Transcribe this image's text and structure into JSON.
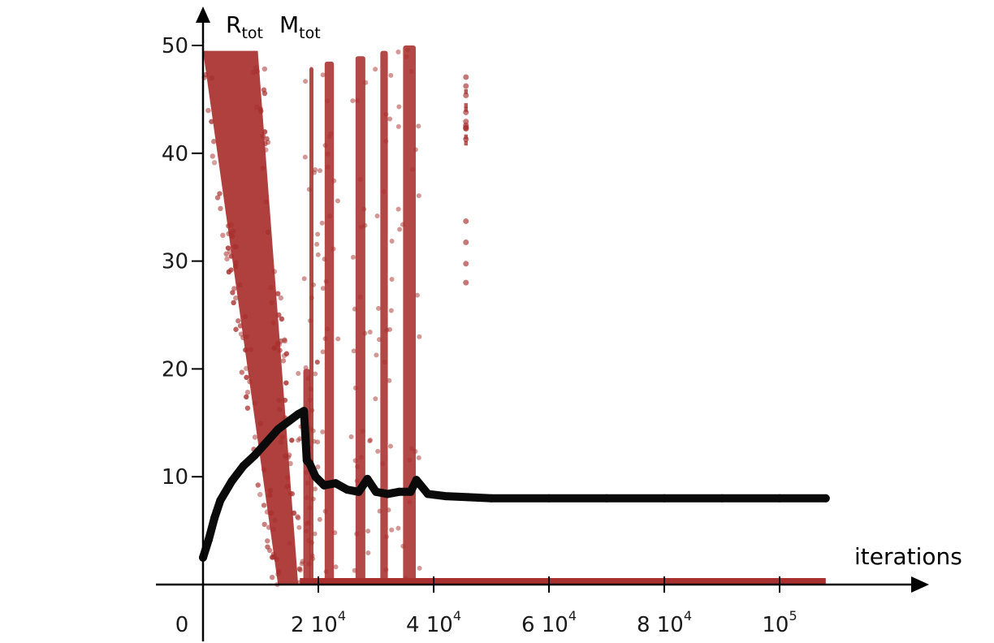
{
  "chart_data": {
    "type": "scatter",
    "ylabel": "R",
    "ylabel_sub": "tot",
    "ylabel2": "M",
    "ylabel2_sub": "tot",
    "xlabel": "iterations",
    "x_ticks": [
      {
        "value": 0,
        "label": "0",
        "sup": ""
      },
      {
        "value": 20000,
        "label": "2 10",
        "sup": "4"
      },
      {
        "value": 40000,
        "label": "4 10",
        "sup": "4"
      },
      {
        "value": 60000,
        "label": "6 10",
        "sup": "4"
      },
      {
        "value": 80000,
        "label": "8 10",
        "sup": "4"
      },
      {
        "value": 100000,
        "label": "10",
        "sup": "5"
      }
    ],
    "y_ticks": [
      10,
      20,
      30,
      40,
      50
    ],
    "xlim": [
      0,
      110000
    ],
    "ylim": [
      0,
      50
    ],
    "grid": false,
    "colors": {
      "R_tot": "#a8302e",
      "M_tot": "#0a0a0a"
    },
    "series": [
      {
        "key": "M_tot",
        "x": [
          0,
          1000,
          2000,
          3000,
          5000,
          7000,
          9000,
          11000,
          13000,
          15000,
          16500,
          17500,
          18000,
          18500,
          19500,
          21000,
          23000,
          25000,
          27000,
          28500,
          30000,
          32000,
          34000,
          36000,
          37000,
          39000,
          42000,
          46000,
          50000,
          60000,
          70000,
          80000,
          90000,
          100000,
          108000
        ],
        "y": [
          2.5,
          4.2,
          6.2,
          7.8,
          9.6,
          11.0,
          12.0,
          13.2,
          14.4,
          15.2,
          15.8,
          16.1,
          11.5,
          11.2,
          10.0,
          9.2,
          9.4,
          8.8,
          8.6,
          9.8,
          8.6,
          8.4,
          8.6,
          8.6,
          9.7,
          8.4,
          8.2,
          8.1,
          8.0,
          8.0,
          8.0,
          8.0,
          8.0,
          8.0,
          8.0
        ]
      }
    ],
    "r_tot_bands": [
      {
        "type": "wedge",
        "x_top_start": 0,
        "x_top_end": 9500,
        "y_top": 49.5,
        "x_bottom_start": 13000,
        "x_bottom_end": 16500,
        "y_bottom": 0
      },
      {
        "type": "column",
        "x": 18000,
        "width": 1200,
        "y_min": 0,
        "y_max": 20
      },
      {
        "type": "column",
        "x": 18800,
        "width": 700,
        "y_min": 0,
        "y_max": 48
      },
      {
        "type": "column",
        "x": 21900,
        "width": 1600,
        "y_min": 0,
        "y_max": 48.5
      },
      {
        "type": "column",
        "x": 27300,
        "width": 1700,
        "y_min": 0,
        "y_max": 49
      },
      {
        "type": "column",
        "x": 31400,
        "width": 1300,
        "y_min": 0,
        "y_max": 49.5
      },
      {
        "type": "column",
        "x": 35800,
        "width": 2200,
        "y_min": 0,
        "y_max": 50
      },
      {
        "type": "column",
        "x": 45600,
        "width": 900,
        "y_min": 26,
        "y_max": 48
      },
      {
        "type": "baseline",
        "x_start": 16800,
        "x_end": 108000,
        "y": 0
      }
    ]
  }
}
